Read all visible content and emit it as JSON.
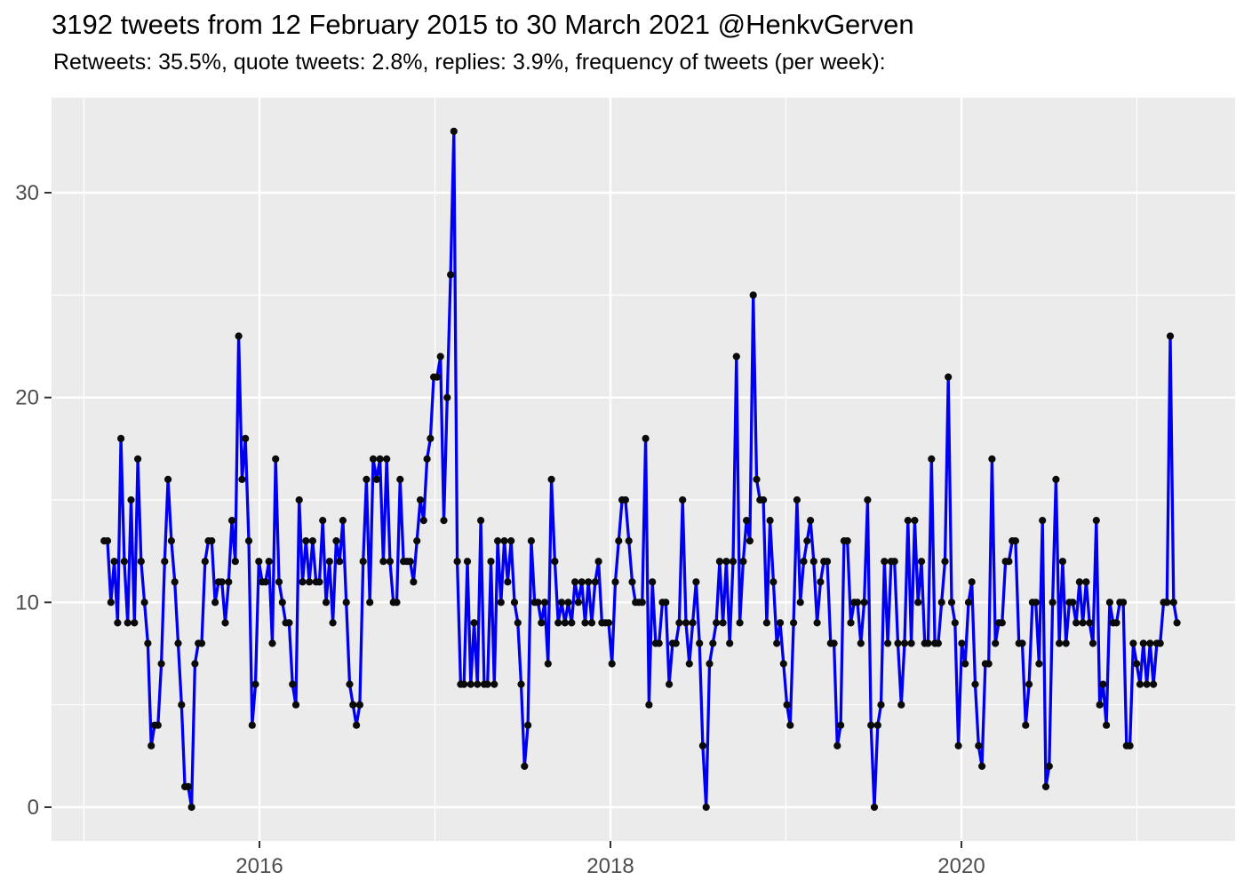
{
  "chart_data": {
    "type": "line",
    "title": "3192 tweets from 12 February 2015 to 30 March 2021 @HenkvGerven",
    "subtitle": "Retweets: 35.5%, quote tweets: 2.8%, replies: 3.9%, frequency of tweets (per week):",
    "x_axis": {
      "tick_labels": [
        "2016",
        "2018",
        "2020"
      ],
      "tick_years": [
        2016,
        2018,
        2020
      ],
      "minor_years": [
        2015,
        2017,
        2019,
        2021
      ],
      "start_year_fraction": 2015.115,
      "points_per_year": 52.18
    },
    "y_axis": {
      "tick_labels": [
        "0",
        "10",
        "20",
        "30"
      ],
      "tick_values": [
        0,
        10,
        20,
        30
      ],
      "minor_values": [
        5,
        15,
        25
      ],
      "range": [
        0,
        33
      ]
    },
    "legend": "none",
    "grid": "on",
    "panel_color": "#EBEBEB",
    "grid_color": "#FFFFFF",
    "axis_text_color": "#4D4D4D",
    "tick_mark_color": "#333333",
    "series": [
      {
        "name": "tweets per week",
        "color": "#0000EE",
        "point_color": "#0A0A0A",
        "values": [
          13,
          13,
          10,
          12,
          9,
          18,
          12,
          9,
          15,
          9,
          17,
          12,
          10,
          8,
          3,
          4,
          4,
          7,
          12,
          16,
          13,
          11,
          8,
          5,
          1,
          1,
          0,
          7,
          8,
          8,
          12,
          13,
          13,
          10,
          11,
          11,
          9,
          11,
          14,
          12,
          23,
          16,
          18,
          13,
          4,
          6,
          12,
          11,
          11,
          12,
          8,
          17,
          11,
          10,
          9,
          9,
          6,
          5,
          15,
          11,
          13,
          11,
          13,
          11,
          11,
          14,
          10,
          12,
          9,
          13,
          12,
          14,
          10,
          6,
          5,
          4,
          5,
          12,
          16,
          10,
          17,
          16,
          17,
          12,
          17,
          12,
          10,
          10,
          16,
          12,
          12,
          12,
          11,
          13,
          15,
          14,
          17,
          18,
          21,
          21,
          22,
          14,
          20,
          26,
          33,
          12,
          6,
          6,
          12,
          6,
          9,
          6,
          14,
          6,
          6,
          12,
          6,
          13,
          10,
          13,
          11,
          13,
          10,
          9,
          6,
          2,
          4,
          13,
          10,
          10,
          9,
          10,
          7,
          16,
          12,
          9,
          10,
          9,
          10,
          9,
          11,
          10,
          11,
          9,
          11,
          9,
          11,
          12,
          9,
          9,
          9,
          7,
          11,
          13,
          15,
          15,
          13,
          11,
          10,
          10,
          10,
          18,
          5,
          11,
          8,
          8,
          10,
          10,
          6,
          8,
          8,
          9,
          15,
          9,
          7,
          9,
          11,
          8,
          3,
          0,
          7,
          8,
          9,
          12,
          9,
          12,
          8,
          12,
          22,
          9,
          12,
          14,
          13,
          25,
          16,
          15,
          15,
          9,
          14,
          11,
          8,
          9,
          7,
          5,
          4,
          9,
          15,
          10,
          12,
          13,
          14,
          12,
          9,
          11,
          12,
          12,
          8,
          8,
          3,
          4,
          13,
          13,
          9,
          10,
          10,
          8,
          10,
          15,
          4,
          0,
          4,
          5,
          12,
          8,
          12,
          12,
          8,
          5,
          8,
          14,
          8,
          14,
          10,
          12,
          8,
          8,
          17,
          8,
          8,
          10,
          12,
          21,
          10,
          9,
          3,
          8,
          7,
          10,
          11,
          6,
          3,
          2,
          7,
          7,
          17,
          8,
          9,
          9,
          12,
          12,
          13,
          13,
          8,
          8,
          4,
          6,
          10,
          10,
          7,
          14,
          1,
          2,
          10,
          16,
          8,
          12,
          8,
          10,
          10,
          9,
          11,
          9,
          11,
          9,
          8,
          14,
          5,
          6,
          4,
          10,
          9,
          9,
          10,
          10,
          3,
          3,
          8,
          7,
          6,
          8,
          6,
          8,
          6,
          8,
          8,
          10,
          10,
          23,
          10,
          9
        ]
      }
    ]
  }
}
